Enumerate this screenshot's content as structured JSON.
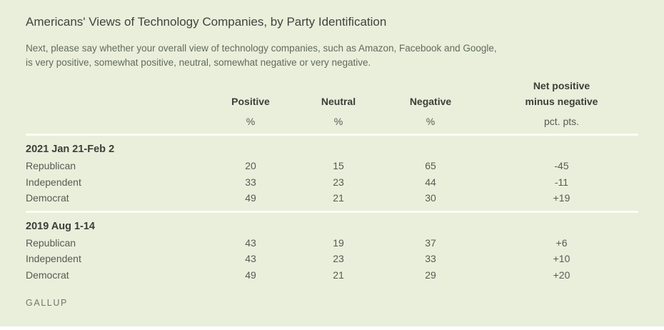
{
  "colors": {
    "card_background": "#e9efdb",
    "page_background": "#ffffff",
    "title_text": "#3f4440",
    "subtitle_text": "#626b5c",
    "header_bold_text": "#3a3f39",
    "body_text": "#565c52",
    "divider": "#fbfdf2",
    "footer_text": "#71766b"
  },
  "header": {
    "title": "Americans' Views of Technology Companies, by Party Identification",
    "subtitle_line1": "Next, please say whether your overall view of technology companies, such as Amazon, Facebook and Google,",
    "subtitle_line2": "is very positive, somewhat positive, neutral, somewhat negative or very negative."
  },
  "table": {
    "headers": {
      "positive": "Positive",
      "neutral": "Neutral",
      "negative": "Negative",
      "net_line1": "Net positive",
      "net_line2": "minus negative"
    },
    "units": {
      "percent": "%",
      "pct_pts": "pct. pts."
    },
    "sections": [
      {
        "label": "2021 Jan 21-Feb 2",
        "rows": [
          {
            "label": "Republican",
            "positive": "20",
            "neutral": "15",
            "negative": "65",
            "net": "-45"
          },
          {
            "label": "Independent",
            "positive": "33",
            "neutral": "23",
            "negative": "44",
            "net": "-11"
          },
          {
            "label": "Democrat",
            "positive": "49",
            "neutral": "21",
            "negative": "30",
            "net": "+19"
          }
        ]
      },
      {
        "label": "2019 Aug 1-14",
        "rows": [
          {
            "label": "Republican",
            "positive": "43",
            "neutral": "19",
            "negative": "37",
            "net": "+6"
          },
          {
            "label": "Independent",
            "positive": "43",
            "neutral": "23",
            "negative": "33",
            "net": "+10"
          },
          {
            "label": "Democrat",
            "positive": "49",
            "neutral": "21",
            "negative": "29",
            "net": "+20"
          }
        ]
      }
    ]
  },
  "footer": {
    "brand": "GALLUP"
  },
  "chart_data": {
    "type": "table",
    "title": "Americans' Views of Technology Companies, by Party Identification",
    "subtitle": "Next, please say whether your overall view of technology companies, such as Amazon, Facebook and Google, is very positive, somewhat positive, neutral, somewhat negative or very negative.",
    "columns": [
      "Positive %",
      "Neutral %",
      "Negative %",
      "Net positive minus negative pct. pts."
    ],
    "groups": [
      {
        "period": "2021 Jan 21-Feb 2",
        "rows": [
          {
            "party": "Republican",
            "positive": 20,
            "neutral": 15,
            "negative": 65,
            "net": -45
          },
          {
            "party": "Independent",
            "positive": 33,
            "neutral": 23,
            "negative": 44,
            "net": -11
          },
          {
            "party": "Democrat",
            "positive": 49,
            "neutral": 21,
            "negative": 30,
            "net": 19
          }
        ]
      },
      {
        "period": "2019 Aug 1-14",
        "rows": [
          {
            "party": "Republican",
            "positive": 43,
            "neutral": 19,
            "negative": 37,
            "net": 6
          },
          {
            "party": "Independent",
            "positive": 43,
            "neutral": 23,
            "negative": 33,
            "net": 10
          },
          {
            "party": "Democrat",
            "positive": 49,
            "neutral": 21,
            "negative": 29,
            "net": 20
          }
        ]
      }
    ],
    "source": "GALLUP"
  }
}
